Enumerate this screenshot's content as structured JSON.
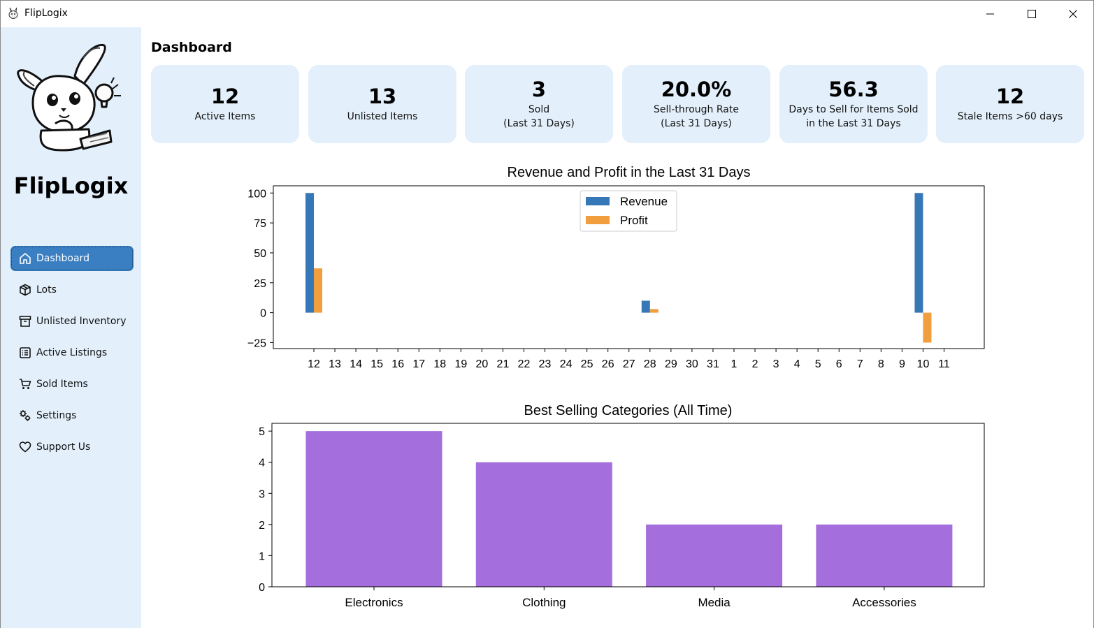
{
  "window": {
    "title": "FlipLogix",
    "controls": [
      "minimize-icon",
      "maximize-icon",
      "close-icon"
    ]
  },
  "sidebar": {
    "brand": "FlipLogix",
    "items": [
      {
        "label": "Dashboard",
        "icon": "home-icon",
        "active": true
      },
      {
        "label": "Lots",
        "icon": "box-icon",
        "active": false
      },
      {
        "label": "Unlisted Inventory",
        "icon": "archive-icon",
        "active": false
      },
      {
        "label": "Active Listings",
        "icon": "list-icon",
        "active": false
      },
      {
        "label": "Sold Items",
        "icon": "cart-icon",
        "active": false
      },
      {
        "label": "Settings",
        "icon": "gears-icon",
        "active": false
      },
      {
        "label": "Support Us",
        "icon": "heart-icon",
        "active": false
      }
    ],
    "active_color": "#3a7fc1",
    "background": "#e3f0fb"
  },
  "main": {
    "title": "Dashboard",
    "cards": [
      {
        "value": "12",
        "label": "Active Items"
      },
      {
        "value": "13",
        "label": "Unlisted Items"
      },
      {
        "value": "3",
        "label": "Sold\n(Last 31 Days)"
      },
      {
        "value": "20.0%",
        "label": "Sell-through Rate\n(Last 31 Days)"
      },
      {
        "value": "56.3",
        "label": "Days to Sell for Items Sold\nin the Last 31 Days"
      },
      {
        "value": "12",
        "label": "Stale Items >60 days"
      }
    ]
  },
  "chart_data": [
    {
      "type": "bar",
      "title": "Revenue and Profit in the Last 31 Days",
      "categories": [
        "12",
        "13",
        "14",
        "15",
        "16",
        "17",
        "18",
        "19",
        "20",
        "21",
        "22",
        "23",
        "24",
        "25",
        "26",
        "27",
        "28",
        "29",
        "30",
        "31",
        "1",
        "2",
        "3",
        "4",
        "5",
        "6",
        "7",
        "8",
        "9",
        "10",
        "11"
      ],
      "series": [
        {
          "name": "Revenue",
          "color": "#3677b8",
          "values": [
            100,
            0,
            0,
            0,
            0,
            0,
            0,
            0,
            0,
            0,
            0,
            0,
            0,
            0,
            0,
            0,
            10,
            0,
            0,
            0,
            0,
            0,
            0,
            0,
            0,
            0,
            0,
            0,
            0,
            100,
            0
          ]
        },
        {
          "name": "Profit",
          "color": "#f09e3e",
          "values": [
            37,
            0,
            0,
            0,
            0,
            0,
            0,
            0,
            0,
            0,
            0,
            0,
            0,
            0,
            0,
            0,
            3,
            0,
            0,
            0,
            0,
            0,
            0,
            0,
            0,
            0,
            0,
            0,
            0,
            -25,
            0
          ]
        }
      ],
      "yticks": [
        100,
        75,
        50,
        25,
        0,
        -25
      ],
      "ylim": [
        -30,
        106
      ],
      "legend": "upper-center",
      "grid": false
    },
    {
      "type": "bar",
      "title": "Best Selling Categories (All Time)",
      "categories": [
        "Electronics",
        "Clothing",
        "Media",
        "Accessories"
      ],
      "values": [
        5,
        4,
        2,
        2
      ],
      "color": "#a46fdc",
      "yticks": [
        5,
        4,
        3,
        2,
        1,
        0
      ],
      "ylim": [
        0,
        5.25
      ],
      "grid": false
    }
  ]
}
